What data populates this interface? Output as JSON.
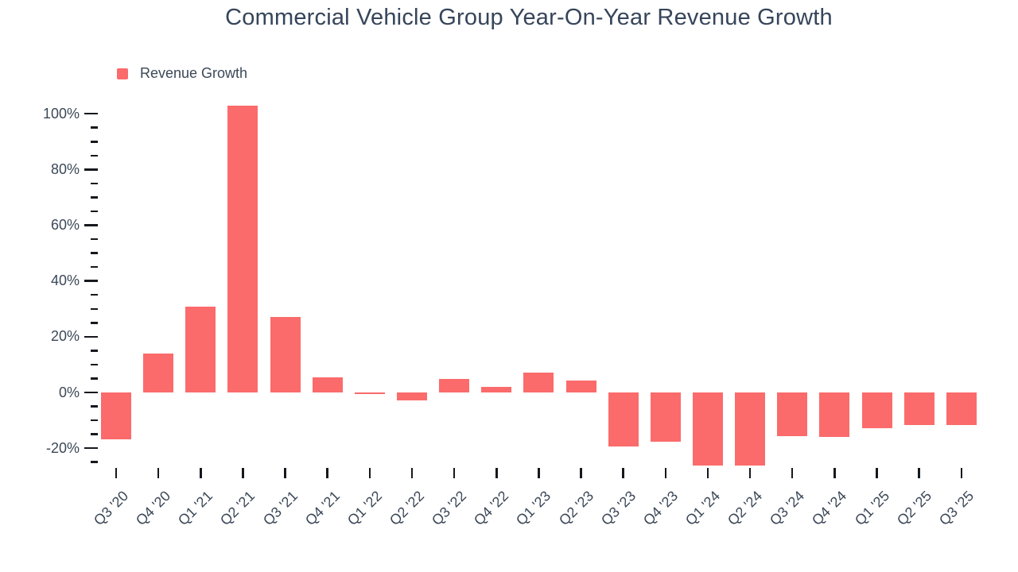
{
  "title": "Commercial Vehicle Group Year-On-Year Revenue Growth",
  "legend": {
    "label": "Revenue Growth",
    "swatch_color": "#FB6B6B"
  },
  "colors": {
    "bar": "#FB6B6B",
    "axis_text": "#3C4858",
    "title_text": "#36455A",
    "tick": "#15181d"
  },
  "chart_data": {
    "type": "bar",
    "title": "Commercial Vehicle Group Year-On-Year Revenue Growth",
    "series_name": "Revenue Growth",
    "categories": [
      "Q3 '20",
      "Q4 '20",
      "Q1 '21",
      "Q2 '21",
      "Q3 '21",
      "Q4 '21",
      "Q1 '22",
      "Q2 '22",
      "Q3 '22",
      "Q4 '22",
      "Q1 '23",
      "Q2 '23",
      "Q3 '23",
      "Q4 '23",
      "Q1 '24",
      "Q2 '24",
      "Q3 '24",
      "Q4 '24",
      "Q1 '25",
      "Q2 '25",
      "Q3 '25"
    ],
    "values": [
      -16.7,
      14,
      30.7,
      102.8,
      27.2,
      5.5,
      -0.7,
      -2.9,
      4.8,
      2.1,
      7.2,
      4.4,
      -19.5,
      -17.8,
      -26.1,
      -26.3,
      -15.7,
      -15.9,
      -12.8,
      -11.6,
      -11.6
    ],
    "unit": "%",
    "xlabel": "",
    "ylabel": "",
    "y_major_ticks": [
      100,
      80,
      60,
      40,
      20,
      0,
      -20
    ],
    "y_tick_labels": [
      "100%",
      "80%",
      "60%",
      "40%",
      "20%",
      "0%",
      "-20%"
    ],
    "y_minor_step": 5,
    "ylim": [
      -27,
      105
    ],
    "grid": false,
    "legend_position": "top-left",
    "bar_color": "#FB6B6B"
  }
}
